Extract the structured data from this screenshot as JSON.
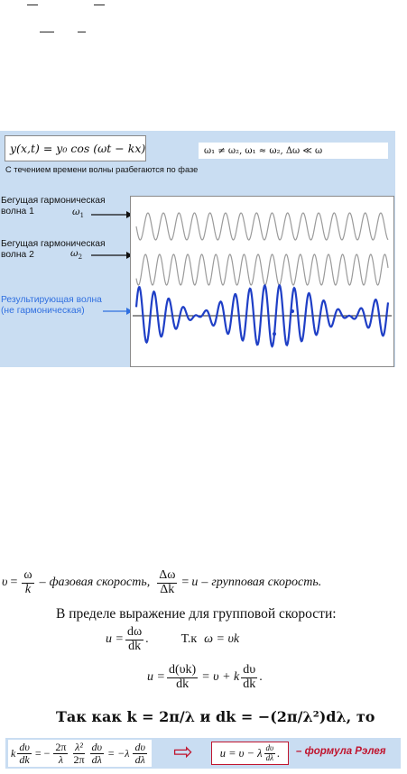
{
  "figure": {
    "formula": "y(x,t) = y₀ cos (ωt − kx)",
    "conditions": "ω₁ ≠ ω₂, ω₁ ≈ ω₂, Δω ≪ ω",
    "caption": "С течением времени волны разбегаются по фазе",
    "wave1_label_line1": "Бегущая гармоническая",
    "wave1_label_line2": "волна 1",
    "wave1_omega": "ω",
    "wave1_omega_sub": "1",
    "wave2_label_line1": "Бегущая гармоническая",
    "wave2_label_line2": "волна 2",
    "wave2_omega": "ω",
    "wave2_omega_sub": "2",
    "result_label_line1": "Результирующая волна",
    "result_label_line2": "(не гармоническая)",
    "colors": {
      "background": "#c9ddf2",
      "wave_gray": "#9a9a9a",
      "wave_blue": "#1f3fc6",
      "arrow_blue": "#2f6fe0"
    }
  },
  "text": {
    "v": "υ",
    "eq": "=",
    "omega": "ω",
    "k": "k",
    "dash": "–",
    "phase_velocity": "фазовая скорость,",
    "delta_omega": "Δω",
    "delta_k": "Δk",
    "u": "u",
    "group_velocity": "групповая скорость.",
    "limit_sentence": "В пределе выражение для групповой скорости:",
    "u_eq": "u =",
    "d_omega": "dω",
    "dk": "dk",
    "dot": ".",
    "tk_label": "Т.к",
    "omega_vk": "ω = υk",
    "d_vk": "d(υk)",
    "plus_part": "= υ + k",
    "dv": "dυ",
    "since_line": "Так как k = 2π/λ и dk = −(2π/λ²)dλ, то",
    "strip_k": "k",
    "strip_eq1": "= −",
    "two_pi": "2π",
    "lambda": "λ",
    "lambda_sq": "λ²",
    "d_lambda": "dλ",
    "strip_eq2": "= −λ",
    "arrow": "⇨",
    "u_final": "u = υ − λ",
    "dv_dl_num": "dυ",
    "dv_dl_den": "dλ",
    "rayleigh": "– формула Рэлея"
  }
}
